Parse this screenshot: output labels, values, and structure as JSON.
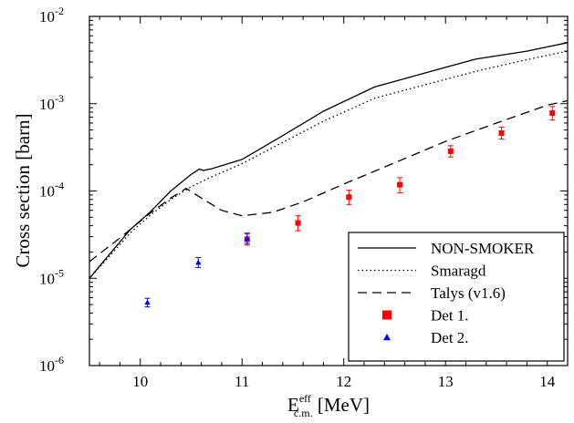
{
  "chart_data": {
    "type": "line",
    "xlabel": {
      "main": "E",
      "sup": "eff",
      "sub": "c.m.",
      "unit": " [MeV]"
    },
    "ylabel": "Cross section [barn]",
    "xlim": [
      9.5,
      14.2
    ],
    "ylim": [
      1e-06,
      0.01
    ],
    "yscale": "log",
    "grid": false,
    "legend_position": "bottom-right",
    "x_ticks": [
      10,
      11,
      12,
      13,
      14
    ],
    "x_tick_labels": [
      "10",
      "11",
      "12",
      "13",
      "14"
    ],
    "y_ticks": [
      {
        "value": 1e-06,
        "base": "10",
        "exp": "-6"
      },
      {
        "value": 1e-05,
        "base": "10",
        "exp": "-5"
      },
      {
        "value": 0.0001,
        "base": "10",
        "exp": "-4"
      },
      {
        "value": 0.001,
        "base": "10",
        "exp": "-3"
      },
      {
        "value": 0.01,
        "base": "10",
        "exp": "-2"
      }
    ],
    "series": [
      {
        "name": "NON-SMOKER",
        "kind": "line",
        "dash": "solid",
        "color": "#000000",
        "x": [
          9.5,
          9.7,
          9.9,
          10.1,
          10.3,
          10.5,
          10.58,
          10.62,
          10.7,
          11.0,
          11.4,
          11.8,
          12.3,
          12.8,
          13.3,
          13.8,
          14.2
        ],
        "y": [
          1e-05,
          1.9e-05,
          3.6e-05,
          5.8e-05,
          0.0001,
          0.000155,
          0.000178,
          0.000172,
          0.00018,
          0.00023,
          0.00043,
          0.00082,
          0.00155,
          0.00225,
          0.00325,
          0.004,
          0.005
        ]
      },
      {
        "name": "Smaragd",
        "kind": "line",
        "dash": "dotted",
        "color": "#000000",
        "x": [
          9.5,
          9.7,
          9.9,
          10.1,
          10.3,
          10.5,
          10.7,
          11.0,
          11.4,
          11.8,
          12.3,
          12.8,
          13.3,
          13.8,
          14.2
        ],
        "y": [
          1e-05,
          1.8e-05,
          3.3e-05,
          5.3e-05,
          8e-05,
          0.000112,
          0.000145,
          0.000205,
          0.00036,
          0.00063,
          0.00115,
          0.00165,
          0.00235,
          0.0032,
          0.004
        ]
      },
      {
        "name": "Talys (v1.6)",
        "kind": "line",
        "dash": "dashed",
        "color": "#000000",
        "x": [
          9.5,
          9.8,
          10.1,
          10.3,
          10.45,
          10.6,
          10.8,
          11.0,
          11.3,
          11.6,
          12.0,
          12.5,
          13.0,
          13.5,
          14.0,
          14.2
        ],
        "y": [
          1.55e-05,
          2.9e-05,
          5.6e-05,
          8.3e-05,
          0.000107,
          8.3e-05,
          6e-05,
          5.2e-05,
          5.7e-05,
          7.5e-05,
          0.00012,
          0.00021,
          0.00037,
          0.0006,
          0.00096,
          0.00108
        ]
      },
      {
        "name": "Det 1.",
        "kind": "scatter",
        "marker": "square",
        "color": "#ff0000",
        "points": [
          {
            "x": 11.05,
            "y": 2.8e-05,
            "ylo": 2.4e-05,
            "yhi": 3.3e-05
          },
          {
            "x": 11.55,
            "y": 4.3e-05,
            "ylo": 3.5e-05,
            "yhi": 5.2e-05
          },
          {
            "x": 12.05,
            "y": 8.5e-05,
            "ylo": 7e-05,
            "yhi": 0.000102
          },
          {
            "x": 12.55,
            "y": 0.000118,
            "ylo": 9.5e-05,
            "yhi": 0.000142
          },
          {
            "x": 13.05,
            "y": 0.000285,
            "ylo": 0.000245,
            "yhi": 0.00033
          },
          {
            "x": 13.55,
            "y": 0.00046,
            "ylo": 0.000395,
            "yhi": 0.00054
          },
          {
            "x": 14.05,
            "y": 0.00078,
            "ylo": 0.00065,
            "yhi": 0.00093
          }
        ]
      },
      {
        "name": "Det 2.",
        "kind": "scatter",
        "marker": "triangle",
        "color": "#0000ff",
        "points": [
          {
            "x": 10.07,
            "y": 5.3e-06,
            "ylo": 4.7e-06,
            "yhi": 5.9e-06
          },
          {
            "x": 10.57,
            "y": 1.52e-05,
            "ylo": 1.33e-05,
            "yhi": 1.73e-05
          },
          {
            "x": 11.05,
            "y": 2.85e-05,
            "ylo": 2.5e-05,
            "yhi": 3.25e-05
          }
        ]
      }
    ]
  }
}
